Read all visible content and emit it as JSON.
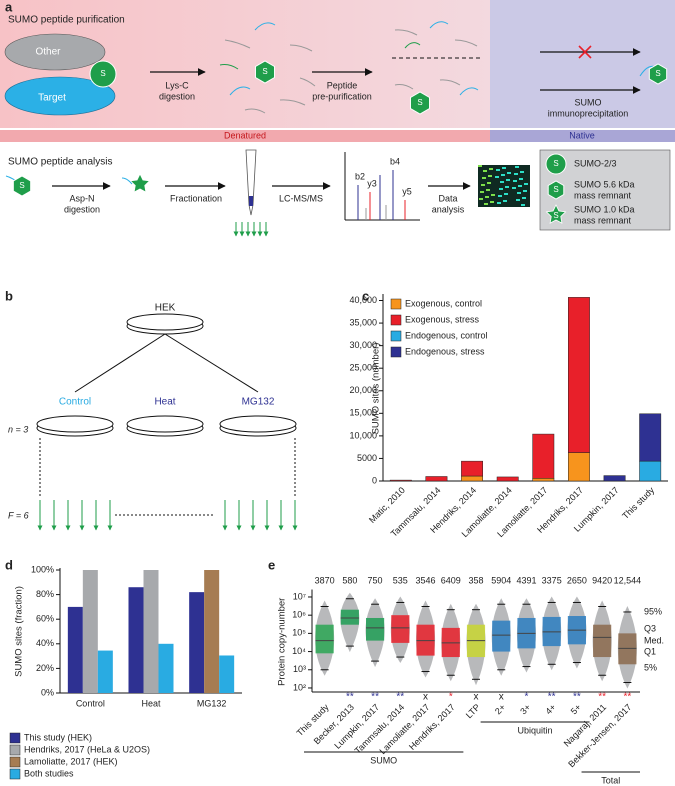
{
  "panel_a": {
    "label": "a",
    "purification_title": "SUMO peptide purification",
    "other": "Other",
    "target": "Target",
    "s": "S",
    "lys_c": [
      "Lys-C",
      "digestion"
    ],
    "pre_purification": [
      "Peptide",
      "pre-purification"
    ],
    "immunoprecipitation": [
      "SUMO",
      "immunoprecipitation"
    ],
    "denatured": "Denatured",
    "native": "Native",
    "analysis_title": "SUMO peptide analysis",
    "asp_n": [
      "Asp-N",
      "digestion"
    ],
    "fractionation": "Fractionation",
    "lc_ms": "LC-MS/MS",
    "ions": [
      "b2",
      "y3",
      "b4",
      "y5"
    ],
    "data_analysis": [
      "Data",
      "analysis"
    ],
    "legend": [
      [
        "SUMO-2/3"
      ],
      [
        "SUMO 5.6 kDa",
        "mass remnant"
      ],
      [
        "SUMO 1.0 kDa",
        "mass remnant"
      ]
    ]
  },
  "panel_b": {
    "label": "b",
    "cell_line": "HEK",
    "conditions": [
      "Control",
      "Heat",
      "MG132"
    ],
    "condition_colors": [
      "#29abe2",
      "#2e3192",
      "#2e3192"
    ],
    "replicates": "n = 3",
    "fractions": "F = 6"
  },
  "chart_data": [
    {
      "panel": "c",
      "type": "bar",
      "stacked": true,
      "categories": [
        "Matic, 2010",
        "Tammsalu, 2014",
        "Hendriks, 2014",
        "Lamoliatte, 2014",
        "Lamoliatte, 2017",
        "Hendriks, 2017",
        "Lumpkin, 2017",
        "This study"
      ],
      "series": [
        {
          "name": "Exogenous, control",
          "color": "#f7941d",
          "values": [
            null,
            null,
            1100,
            null,
            600,
            6300,
            null,
            null
          ]
        },
        {
          "name": "Exogenous, stress",
          "color": "#e8202a",
          "values": [
            200,
            1000,
            3300,
            900,
            9800,
            34400,
            null,
            null
          ]
        },
        {
          "name": "Endogenous, control",
          "color": "#29abe2",
          "values": [
            null,
            null,
            null,
            null,
            null,
            null,
            null,
            4400
          ]
        },
        {
          "name": "Endogenous, stress",
          "color": "#2e3192",
          "values": [
            null,
            null,
            null,
            null,
            null,
            null,
            1200,
            10500
          ]
        }
      ],
      "ylabel": "SUMO sites (number)",
      "ylim": [
        0,
        41000
      ],
      "yticks": [
        0,
        5000,
        {
          "value": 10000,
          "label": "10,000"
        },
        {
          "value": 15000,
          "label": "15,000"
        },
        {
          "value": 20000,
          "label": "20,000"
        },
        {
          "value": 25000,
          "label": "25,000"
        },
        {
          "value": 30000,
          "label": "30,000"
        },
        {
          "value": 35000,
          "label": "35,000"
        },
        {
          "value": 40000,
          "label": "40,000"
        }
      ],
      "legend": "top-left"
    },
    {
      "panel": "d",
      "type": "bar",
      "stacked": false,
      "categories": [
        "Control",
        "Heat",
        "MG132"
      ],
      "series": [
        {
          "name": "This study (HEK)",
          "color": "#2e3192",
          "values": [
            70,
            86,
            82
          ]
        },
        {
          "name": "Hendriks, 2017 (HeLa & U2OS)",
          "color": "#a7a9ac",
          "values": [
            100,
            100,
            null
          ]
        },
        {
          "name": "Lamoliatte, 2017 (HEK)",
          "color": "#a67c52",
          "values": [
            null,
            null,
            100
          ]
        },
        {
          "name": "Both studies",
          "color": "#29abe2",
          "values": [
            34.5,
            40,
            30.5
          ]
        }
      ],
      "ylabel": "SUMO sites (fraction)",
      "ylim": [
        0,
        100
      ],
      "yticks": [
        {
          "value": 0,
          "label": "0%"
        },
        {
          "value": 20,
          "label": "20%"
        },
        {
          "value": 40,
          "label": "40%"
        },
        {
          "value": 60,
          "label": "60%"
        },
        {
          "value": 80,
          "label": "80%"
        },
        {
          "value": 100,
          "label": "100%"
        }
      ],
      "legend": "bottom"
    },
    {
      "panel": "e",
      "type": "box",
      "log_scale": true,
      "categories": [
        "This study",
        "Becker, 2013",
        "Lumpkin, 2017",
        "Tammsalu, 2014",
        "Lamoliatte, 2017",
        "Hendriks, 2017",
        "LTP",
        "2+",
        "3+",
        "4+",
        "5+",
        "Nagaraj, 2011",
        "Bekker-Jensen, 2017"
      ],
      "colors": [
        "#2aa654",
        "#1f9e55",
        "#1f9e55",
        "#e8202a",
        "#e8202a",
        "#e8202a",
        "#c8d630",
        "#2b7ec1",
        "#2b7ec1",
        "#2b7ec1",
        "#2b7ec1",
        "#8b6a4e",
        "#8b6a4e"
      ],
      "p5": [
        1000,
        20000,
        3000,
        5000,
        800,
        500,
        300,
        1000,
        1500,
        2000,
        2500,
        500,
        200
      ],
      "q1": [
        8000,
        300000,
        40000,
        30000,
        6000,
        5000,
        5000,
        10000,
        15000,
        20000,
        25000,
        5000,
        2000
      ],
      "median": [
        40000,
        700000,
        200000,
        200000,
        40000,
        30000,
        40000,
        80000,
        100000,
        120000,
        150000,
        60000,
        15000
      ],
      "q3": [
        300000,
        2000000,
        700000,
        1000000,
        300000,
        200000,
        300000,
        500000,
        700000,
        800000,
        900000,
        300000,
        100000
      ],
      "p95": [
        3000000,
        8000000,
        4000000,
        5000000,
        3000000,
        2000000,
        2000000,
        4000000,
        4000000,
        5000000,
        5000000,
        3000000,
        1500000
      ],
      "counts": {
        "values": [
          3870,
          580,
          750,
          535,
          3546,
          6409,
          358,
          5904,
          4391,
          3375,
          2650,
          9420,
          12544
        ],
        "value_labels": [
          "3870",
          "580",
          "750",
          "535",
          "3546",
          "6409",
          "358",
          "5904",
          "4391",
          "3375",
          "2650",
          "9420",
          "12,544"
        ]
      },
      "significance": [
        null,
        "**",
        "**",
        "**",
        "x",
        "*",
        "x",
        "x",
        "*",
        "**",
        "**",
        "**",
        "**"
      ],
      "significance_colors": [
        null,
        "#2e3192",
        "#2e3192",
        "#2e3192",
        "#222222",
        "#e8202a",
        "#222222",
        "#222222",
        "#2e3192",
        "#2e3192",
        "#2e3192",
        "#e8202a",
        "#e8202a"
      ],
      "groups": [
        "SUMO",
        "Ubiquitin",
        "Total"
      ],
      "stat_labels": [
        "95%",
        "Q3",
        "Med.",
        "Q1",
        "5%"
      ],
      "ylabel": "Protein copy-number",
      "ylim": [
        60,
        20000000
      ],
      "yticks": [
        {
          "value": 100,
          "label": "10²"
        },
        {
          "value": 1000,
          "label": "10³"
        },
        {
          "value": 10000,
          "label": "10⁴"
        },
        {
          "value": 100000,
          "label": "10⁵"
        },
        {
          "value": 1000000,
          "label": "10⁶"
        },
        {
          "value": 10000000,
          "label": "10⁷"
        }
      ]
    }
  ]
}
